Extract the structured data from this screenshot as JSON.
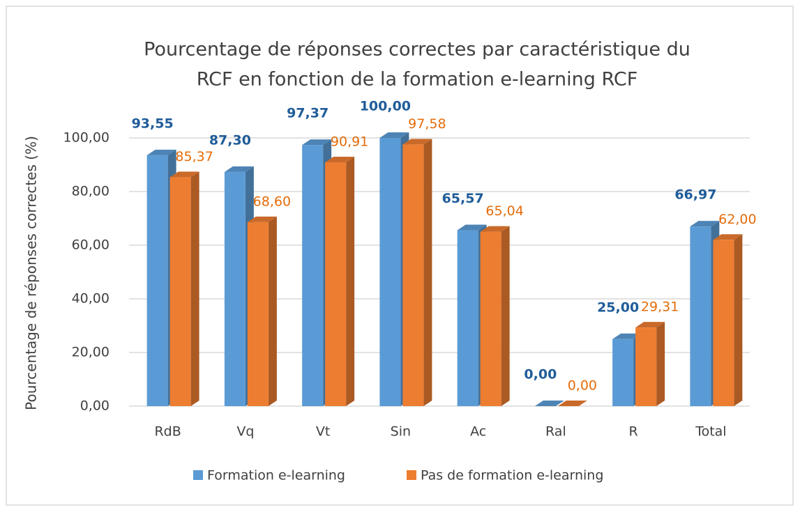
{
  "chart_data": {
    "type": "bar3d",
    "title": [
      "Pourcentage de réponses correctes par caractéristique du",
      "RCF en fonction de la formation e-learning RCF"
    ],
    "y_label": "Pourcentage de réponses correctes (%)",
    "categories": [
      "RdB",
      "Vq",
      "Vt",
      "Sin",
      "Ac",
      "Ral",
      "R",
      "Total"
    ],
    "series": [
      {
        "name": "Formation e-learning",
        "color": "#5b9bd5",
        "label_color": "#1f5c99",
        "values": [
          93.55,
          87.3,
          97.37,
          100.0,
          65.57,
          0.0,
          25.0,
          66.97
        ],
        "value_labels": [
          "93,55",
          "87,30",
          "97,37",
          "100,00",
          "65,57",
          "0,00",
          "25,00",
          "66,97"
        ]
      },
      {
        "name": "Pas de formation e-learning",
        "color": "#ed7d31",
        "label_color": "#e46c0a",
        "values": [
          85.37,
          68.6,
          90.91,
          97.58,
          65.04,
          0.0,
          29.31,
          62.0
        ],
        "value_labels": [
          "85,37",
          "68,60",
          "90,91",
          "97,58",
          "65,04",
          "0,00",
          "29,31",
          "62,00"
        ]
      }
    ],
    "ylim": [
      0,
      100
    ],
    "yticks": [
      {
        "value": 0,
        "label": "0,00"
      },
      {
        "value": 20,
        "label": "20,00"
      },
      {
        "value": 40,
        "label": "40,00"
      },
      {
        "value": 60,
        "label": "60,00"
      },
      {
        "value": 80,
        "label": "80,00"
      },
      {
        "value": 100,
        "label": "100,00"
      }
    ],
    "grid": true,
    "legend": "bottom"
  }
}
